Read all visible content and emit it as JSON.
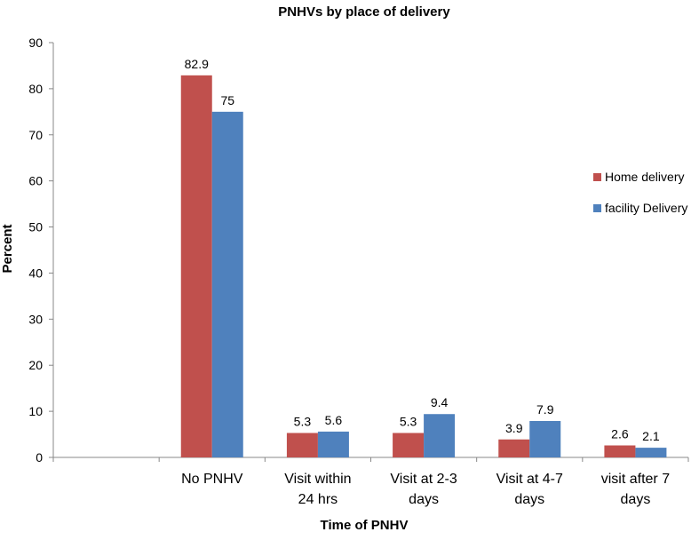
{
  "chart_data": {
    "type": "bar",
    "title": "PNHVs by place of delivery",
    "xlabel": "Time of PNHV",
    "ylabel": "Percent",
    "ylim": [
      0,
      90
    ],
    "yticks": [
      0,
      10,
      20,
      30,
      40,
      50,
      60,
      70,
      80,
      90
    ],
    "grid": false,
    "legend_position": "right",
    "categories": [
      "",
      "No PNHV",
      "Visit within 24 hrs",
      "Visit at 2-3 days",
      "Visit at 4-7 days",
      "visit after 7 days"
    ],
    "category_lines": [
      [
        ""
      ],
      [
        "No PNHV"
      ],
      [
        "Visit within",
        "24 hrs"
      ],
      [
        "Visit at 2-3",
        "days"
      ],
      [
        "Visit at 4-7",
        "days"
      ],
      [
        "visit after 7",
        "days"
      ]
    ],
    "series": [
      {
        "name": "Home delivery",
        "color": "#C0504D",
        "values": [
          null,
          82.9,
          5.3,
          5.3,
          3.9,
          2.6
        ],
        "labels": [
          "",
          "82.9",
          "5.3",
          "5.3",
          "3.9",
          "2.6"
        ]
      },
      {
        "name": "facility Delivery",
        "color": "#4F81BD",
        "values": [
          null,
          75,
          5.6,
          9.4,
          7.9,
          2.1
        ],
        "labels": [
          "",
          "75",
          "5.6",
          "9.4",
          "7.9",
          "2.1"
        ]
      }
    ]
  }
}
